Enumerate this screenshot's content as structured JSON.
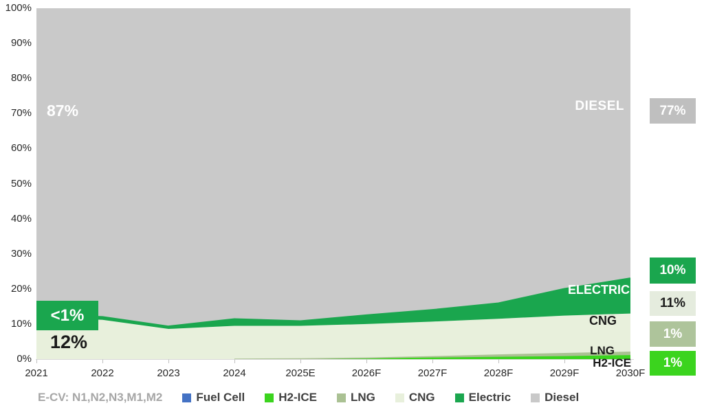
{
  "chart_data": {
    "type": "area",
    "stacked": true,
    "title": "",
    "xlabel": "",
    "ylabel": "",
    "ylim": [
      0,
      100
    ],
    "grid": false,
    "legend_position": "bottom",
    "x": [
      "2021",
      "2022",
      "2023",
      "2024",
      "2025E",
      "2026F",
      "2027F",
      "2028F",
      "2029F",
      "2030F"
    ],
    "yticks": [
      "0%",
      "10%",
      "20%",
      "30%",
      "40%",
      "50%",
      "60%",
      "70%",
      "80%",
      "90%",
      "100%"
    ],
    "series": [
      {
        "name": "Fuel Cell",
        "color": "#4472C4",
        "values": [
          0,
          0,
          0,
          0,
          0,
          0,
          0,
          0,
          0,
          0
        ]
      },
      {
        "name": "H2-ICE",
        "color": "#3BD41E",
        "values": [
          0,
          0,
          0,
          0,
          0,
          0.1,
          0.3,
          0.5,
          0.7,
          1
        ]
      },
      {
        "name": "LNG",
        "color": "#AAC193",
        "values": [
          0,
          0,
          0,
          0,
          0.1,
          0.2,
          0.4,
          0.7,
          0.9,
          1
        ]
      },
      {
        "name": "CNG",
        "color": "#E8F0DC",
        "values": [
          12,
          11.2,
          8.6,
          9.5,
          9.4,
          9.7,
          10,
          10.3,
          10.8,
          11
        ]
      },
      {
        "name": "Electric",
        "color": "#1AA64E",
        "values": [
          0.6,
          0.8,
          0.7,
          1.9,
          1.3,
          2.5,
          3.3,
          4.4,
          7.6,
          10
        ]
      },
      {
        "name": "Diesel",
        "color": "#C9C9C9",
        "values": [
          87.4,
          88,
          90.7,
          88.6,
          89.2,
          87.5,
          86,
          84.1,
          80,
          77
        ]
      }
    ],
    "axis_color": "#D9D9D9",
    "tick_color": "#BFBFBF"
  },
  "annotations": {
    "diesel_2021_pct": "87%",
    "electric_callout": {
      "text": "<1%",
      "bg": "#1AA64E"
    },
    "cng_2021_pct": "12%",
    "diesel_label": "DIESEL",
    "electric_label": "ELECTRIC",
    "cng_label": "CNG",
    "lng_label": "LNG",
    "h2ice_label": "H2-ICE"
  },
  "side_boxes": [
    {
      "label": "77%",
      "bg": "#BFBFBF",
      "fg": "#FFFFFF"
    },
    {
      "label": "10%",
      "bg": "#1AA64E",
      "fg": "#FFFFFF"
    },
    {
      "label": "11%",
      "bg": "#E5ECDE",
      "fg": "#1A1A1A"
    },
    {
      "label": "1%",
      "bg": "#AEC49B",
      "fg": "#FFFFFF"
    },
    {
      "label": "1%",
      "bg": "#3BD41E",
      "fg": "#FFFFFF"
    }
  ],
  "legend": {
    "note": "E-CV: N1,N2,N3,M1,M2",
    "items": [
      {
        "label": "Fuel Cell",
        "color": "#4472C4"
      },
      {
        "label": "H2-ICE",
        "color": "#3BD41E"
      },
      {
        "label": "LNG",
        "color": "#AAC193"
      },
      {
        "label": "CNG",
        "color": "#E8F0DC"
      },
      {
        "label": "Electric",
        "color": "#1AA64E"
      },
      {
        "label": "Diesel",
        "color": "#C9C9C9"
      }
    ]
  }
}
